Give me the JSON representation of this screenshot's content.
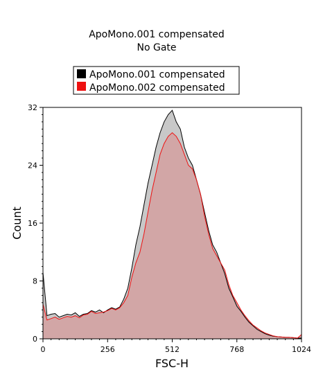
{
  "chart_data": {
    "type": "area",
    "title": "ApoMono.001 compensated",
    "subtitle": "No Gate",
    "xlabel": "FSC-H",
    "ylabel": "Count",
    "xlim": [
      0,
      1024
    ],
    "ylim": [
      0,
      32
    ],
    "x_ticks": [
      0,
      256,
      512,
      768,
      1024
    ],
    "y_ticks": [
      0,
      8,
      16,
      24,
      32
    ],
    "legend": {
      "placement": "top-center",
      "entries": [
        {
          "name": "ApoMono.001 compensated",
          "color": "#000000"
        },
        {
          "name": "ApoMono.002 compensated",
          "color": "#ee1111"
        }
      ]
    },
    "grid": false,
    "series": [
      {
        "name": "ApoMono.001 compensated",
        "color": "#000000",
        "fill": "#c8c8c8",
        "x": [
          0,
          16,
          32,
          48,
          64,
          80,
          96,
          112,
          128,
          144,
          160,
          176,
          192,
          208,
          224,
          240,
          256,
          272,
          288,
          304,
          320,
          336,
          352,
          368,
          384,
          400,
          416,
          432,
          448,
          464,
          480,
          496,
          512,
          528,
          544,
          560,
          576,
          592,
          608,
          624,
          640,
          656,
          672,
          688,
          704,
          720,
          736,
          752,
          768,
          784,
          800,
          816,
          832,
          848,
          864,
          880,
          896,
          912,
          928,
          944,
          960,
          976,
          992,
          1008,
          1024
        ],
        "y": [
          9.2,
          3.2,
          3.4,
          3.5,
          3.0,
          3.2,
          3.4,
          3.3,
          3.6,
          3.1,
          3.4,
          3.5,
          3.9,
          3.7,
          4.0,
          3.6,
          4.0,
          4.3,
          4.1,
          4.4,
          5.5,
          7.0,
          9.8,
          13.0,
          15.5,
          18.5,
          21.5,
          24.0,
          26.5,
          28.5,
          30.0,
          31.0,
          31.6,
          30.0,
          29.0,
          26.5,
          25.0,
          24.0,
          22.0,
          20.0,
          17.5,
          15.0,
          13.0,
          12.0,
          10.5,
          9.0,
          7.0,
          5.8,
          4.5,
          3.8,
          3.0,
          2.3,
          1.8,
          1.3,
          1.0,
          0.7,
          0.5,
          0.35,
          0.3,
          0.25,
          0.2,
          0.2,
          0.15,
          0.1,
          0.1
        ]
      },
      {
        "name": "ApoMono.002 compensated",
        "color": "#ee1111",
        "fill": "#d4a0a0",
        "x": [
          0,
          16,
          32,
          48,
          64,
          80,
          96,
          112,
          128,
          144,
          160,
          176,
          192,
          208,
          224,
          240,
          256,
          272,
          288,
          304,
          320,
          336,
          352,
          368,
          384,
          400,
          416,
          432,
          448,
          464,
          480,
          496,
          512,
          528,
          544,
          560,
          576,
          592,
          608,
          624,
          640,
          656,
          672,
          688,
          704,
          720,
          736,
          752,
          768,
          784,
          800,
          816,
          832,
          848,
          864,
          880,
          896,
          912,
          928,
          944,
          960,
          976,
          992,
          1008,
          1024
        ],
        "y": [
          4.8,
          2.6,
          2.8,
          3.0,
          2.7,
          2.9,
          3.1,
          3.0,
          3.2,
          2.9,
          3.3,
          3.4,
          3.8,
          3.5,
          3.6,
          3.7,
          3.9,
          4.2,
          4.0,
          4.3,
          5.0,
          6.0,
          8.5,
          10.5,
          12.0,
          14.5,
          17.5,
          20.5,
          23.0,
          25.5,
          27.0,
          28.0,
          28.5,
          28.0,
          27.0,
          25.5,
          24.0,
          23.5,
          22.0,
          20.0,
          17.0,
          14.5,
          12.5,
          11.5,
          10.5,
          9.5,
          7.5,
          6.0,
          5.0,
          4.0,
          3.2,
          2.5,
          1.9,
          1.5,
          1.1,
          0.8,
          0.6,
          0.4,
          0.3,
          0.25,
          0.2,
          0.2,
          0.15,
          0.1,
          0.6
        ]
      }
    ]
  }
}
